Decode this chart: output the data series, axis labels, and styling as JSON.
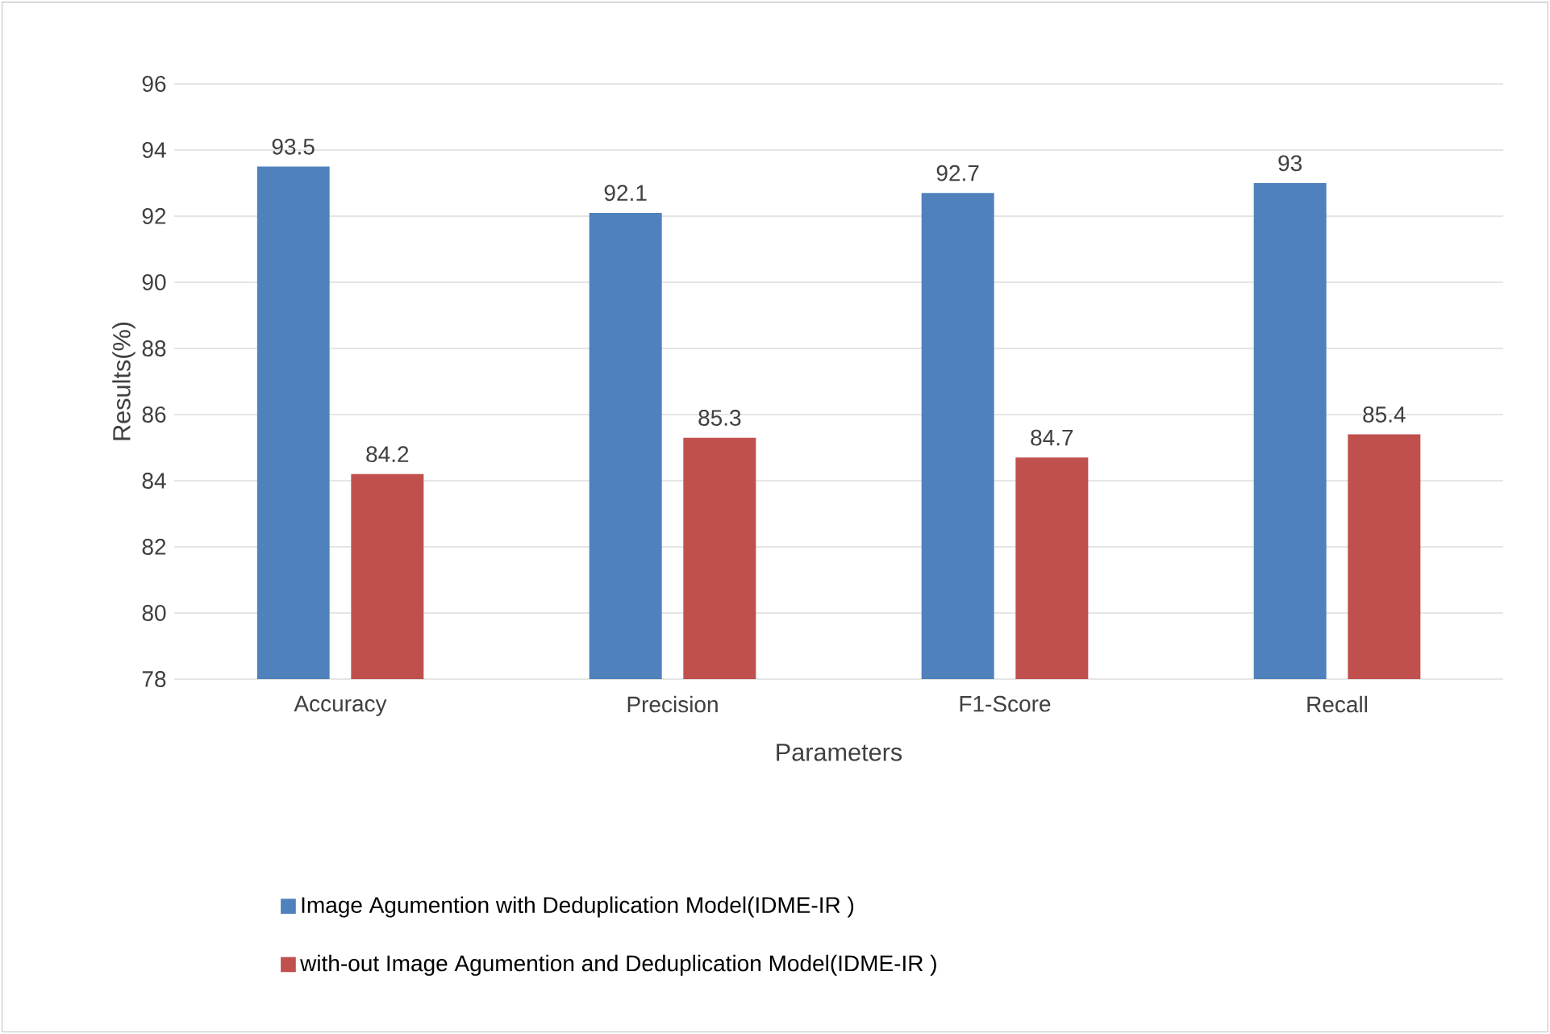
{
  "chart_data": {
    "type": "bar",
    "xlabel": "Parameters",
    "ylabel": "Results(%)",
    "categories": [
      "Accuracy",
      "Precision",
      "F1-Score",
      "Recall"
    ],
    "series": [
      {
        "name": "Image Agumention with Deduplication Model(IDME-IR )",
        "color": "#4f81bd",
        "values": [
          93.5,
          92.1,
          92.7,
          93
        ]
      },
      {
        "name": "with-out Image Agumention and Deduplication Model(IDME-IR )",
        "color": "#c0504d",
        "values": [
          84.2,
          85.3,
          84.7,
          85.4
        ]
      }
    ],
    "ylim": [
      78,
      96
    ],
    "yticks": [
      78,
      80,
      82,
      84,
      86,
      88,
      90,
      92,
      94,
      96
    ],
    "grid": "y",
    "legend": "bottom",
    "data_labels": true
  }
}
